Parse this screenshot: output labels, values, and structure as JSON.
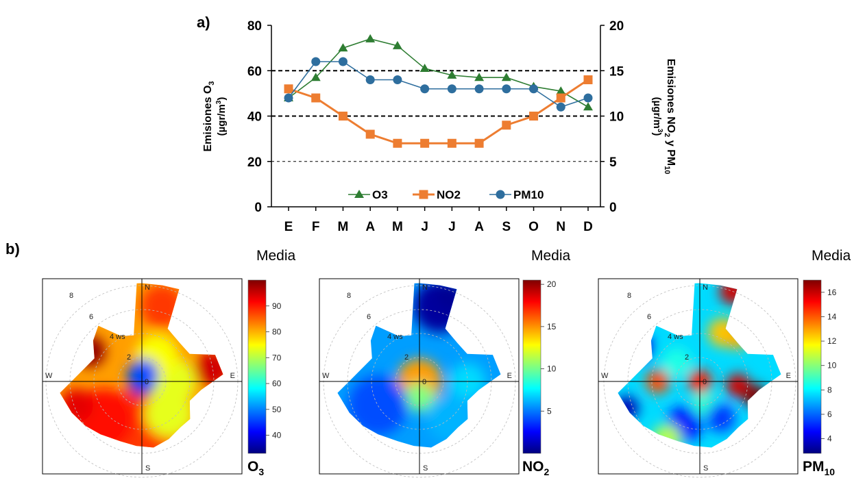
{
  "panel_labels": {
    "a": "a)",
    "b": "b)"
  },
  "chart_data": [
    {
      "type": "line",
      "categories": [
        "E",
        "F",
        "M",
        "A",
        "M",
        "J",
        "J",
        "A",
        "S",
        "O",
        "N",
        "D"
      ],
      "ylabel_left_line1": "Emisiones O",
      "ylabel_left_sub": "3",
      "ylabel_left_line2": "(µgr/m",
      "ylabel_left_sup": "3",
      "ylabel_left_close": ")",
      "ylabel_right_line1": "Emisiones NO",
      "ylabel_right_sub": "2",
      "ylabel_right_mid": " y PM",
      "ylabel_right_sub2": "10",
      "ylabel_right_line2": "(µgr/m",
      "ylabel_right_sup": "3",
      "ylabel_right_close": ")",
      "ylim_left": [
        0,
        80
      ],
      "ylim_right": [
        0,
        20
      ],
      "yticks_left": [
        0,
        20,
        40,
        60,
        80
      ],
      "yticks_right": [
        0,
        5,
        10,
        15,
        20
      ],
      "series": [
        {
          "name": "O3",
          "axis": "left",
          "color": "#2e7d32",
          "marker": "triangle",
          "values": [
            48,
            57,
            70,
            74,
            71,
            61,
            58,
            57,
            57,
            53,
            51,
            44
          ]
        },
        {
          "name": "NO2",
          "axis": "right",
          "color": "#ed7d31",
          "marker": "square",
          "values": [
            13,
            12,
            10,
            8,
            7,
            7,
            7,
            7,
            9,
            10,
            12,
            14
          ]
        },
        {
          "name": "PM10",
          "axis": "right",
          "color": "#2e6e9e",
          "marker": "circle",
          "values": [
            12,
            16,
            16,
            14,
            14,
            13,
            13,
            13,
            13,
            13,
            11,
            12
          ]
        }
      ]
    },
    {
      "type": "heatmap",
      "subtype": "polar",
      "pollutant": "O3",
      "legend_title": "Media",
      "label_main": "O",
      "label_sub": "3",
      "colorbar_ticks": [
        40,
        50,
        60,
        70,
        80,
        90
      ],
      "colorbar_range": [
        33,
        100
      ],
      "compass": [
        "N",
        "E",
        "S",
        "W"
      ],
      "radial_labels": [
        "2",
        "4 ws",
        "6",
        "8"
      ],
      "center_label": "0"
    },
    {
      "type": "heatmap",
      "subtype": "polar",
      "pollutant": "NO2",
      "legend_title": "Media",
      "label_main": "NO",
      "label_sub": "2",
      "colorbar_ticks": [
        5,
        10,
        15,
        20
      ],
      "colorbar_range": [
        0,
        20.5
      ],
      "compass": [
        "N",
        "E",
        "S",
        "W"
      ],
      "radial_labels": [
        "2",
        "4 ws",
        "6",
        "8"
      ],
      "center_label": "0"
    },
    {
      "type": "heatmap",
      "subtype": "polar",
      "pollutant": "PM10",
      "legend_title": "Media",
      "label_main": "PM",
      "label_sub": "10",
      "colorbar_ticks": [
        4,
        6,
        8,
        10,
        12,
        14,
        16
      ],
      "colorbar_range": [
        2.8,
        17
      ],
      "compass": [
        "N",
        "E",
        "S",
        "W"
      ],
      "radial_labels": [
        "2",
        "4 ws",
        "6",
        "8"
      ],
      "center_label": "0"
    }
  ]
}
